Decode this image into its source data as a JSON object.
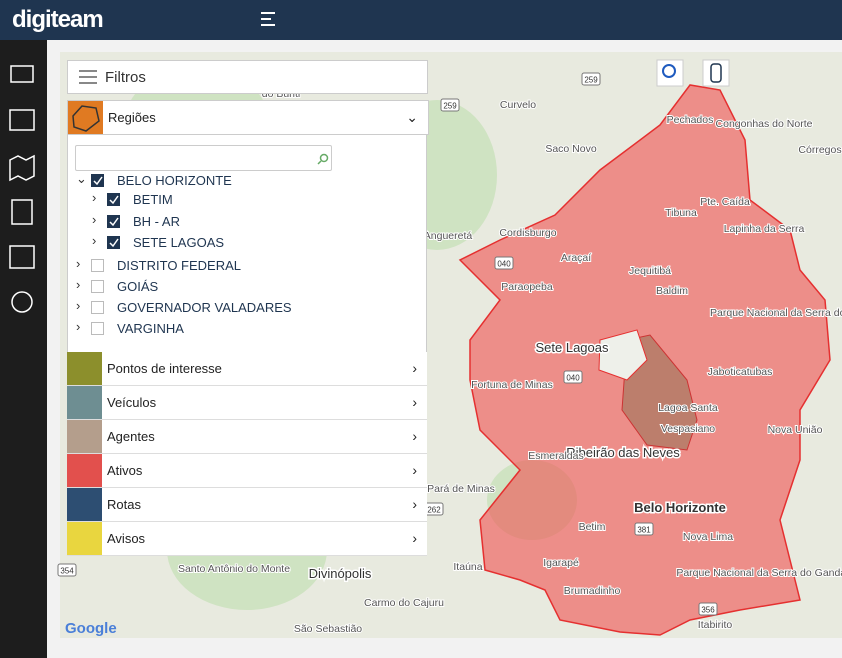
{
  "header": {
    "logo": "digiteam"
  },
  "filters": {
    "title": "Filtros",
    "regions": {
      "title": "Regiões",
      "items": [
        {
          "label": "BELO HORIZONTE",
          "level": 0,
          "checked": true,
          "expanded": true
        },
        {
          "label": "BETIM",
          "level": 1,
          "checked": true,
          "expanded": false
        },
        {
          "label": "BH - AR",
          "level": 1,
          "checked": true,
          "expanded": false
        },
        {
          "label": "SETE LAGOAS",
          "level": 1,
          "checked": true,
          "expanded": false
        },
        {
          "label": "DISTRITO FEDERAL",
          "level": 0,
          "checked": false,
          "expanded": false
        },
        {
          "label": "GOIÁS",
          "level": 0,
          "checked": false,
          "expanded": false
        },
        {
          "label": "GOVERNADOR VALADARES",
          "level": 0,
          "checked": false,
          "expanded": false
        },
        {
          "label": "VARGINHA",
          "level": 0,
          "checked": false,
          "expanded": false
        }
      ]
    },
    "sections": [
      {
        "label": "Pontos de interesse",
        "color": "#8c8f2c"
      },
      {
        "label": "Veículos",
        "color": "#6e8e92"
      },
      {
        "label": "Agentes",
        "color": "#b49e8c"
      },
      {
        "label": "Ativos",
        "color": "#e2504d"
      },
      {
        "label": "Rotas",
        "color": "#2d4e72"
      },
      {
        "label": "Avisos",
        "color": "#e9d63f"
      }
    ]
  },
  "map": {
    "labels": [
      "do Buriti",
      "Curvelo",
      "Pechados",
      "Congonhas do Norte",
      "Córregos",
      "Saco Novo",
      "Tibuna",
      "Pte. Caída",
      "Lapinha da Serra",
      "Angueretá",
      "Cordisburgo",
      "Araçaí",
      "Jequitibá",
      "Paraopeba",
      "Baldim",
      "Parque Nacional da Serra do Cipó",
      "Sete Lagoas",
      "Jaboticatubas",
      "Fortuna de Minas",
      "Lagoa Santa",
      "Vespasiano",
      "Nova União",
      "Ribeirão das Neves",
      "Esmeraldas",
      "Pará de Minas",
      "Belo Horizonte",
      "Betim",
      "Nova Lima",
      "Parque Nacional da Serra do Gandarela",
      "Igarapé",
      "Santo Antônio do Monte",
      "Divinópolis",
      "Itaúna",
      "Brumadinho",
      "Carmo do Cajuru",
      "Itabirito",
      "São Sebastião"
    ],
    "shields": [
      "259",
      "259",
      "040",
      "040",
      "262",
      "354",
      "356",
      "381"
    ],
    "attribution": "Google"
  }
}
